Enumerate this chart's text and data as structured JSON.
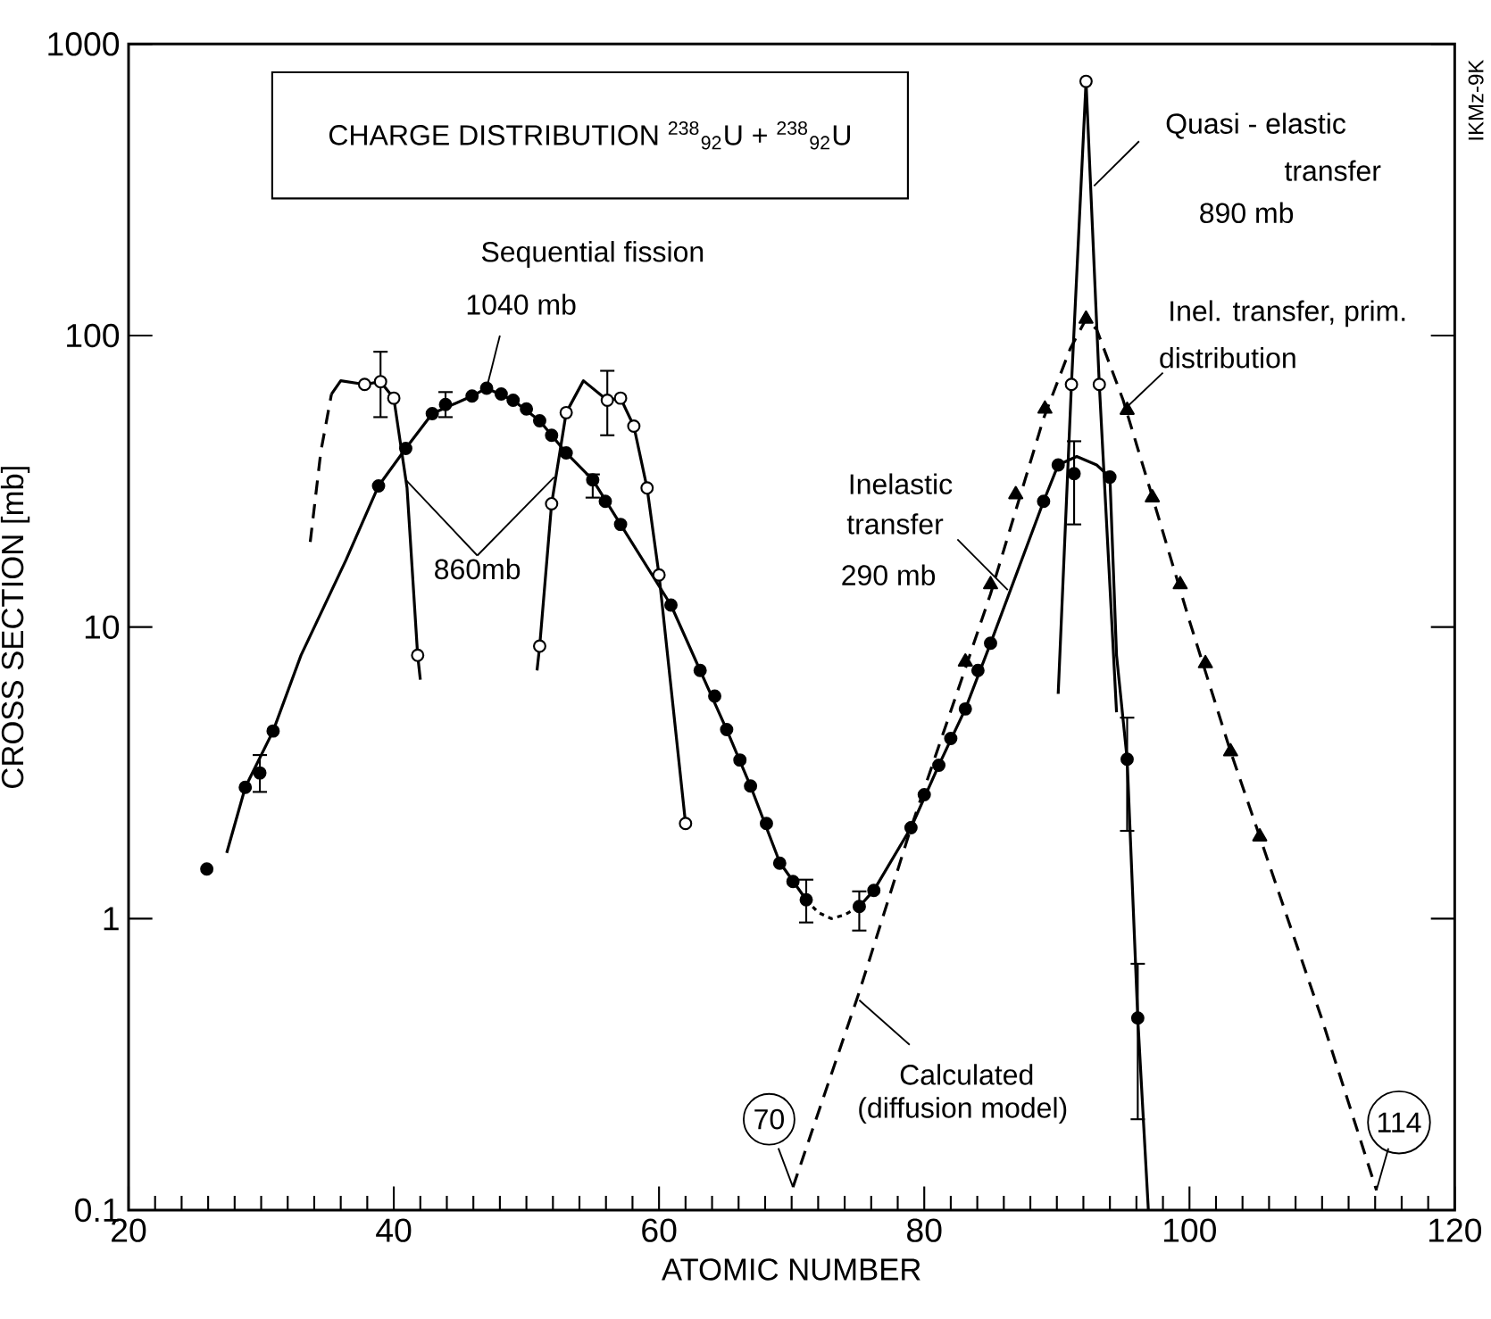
{
  "chart_data": {
    "type": "line",
    "title": "CHARGE DISTRIBUTION $^{238}$$_{92}$U + $^{238}$$_{92}$U",
    "xlabel": "ATOMIC NUMBER",
    "ylabel": "CROSS SECTION [mb]",
    "xlim": [
      20,
      120
    ],
    "ylim": [
      0.1,
      1000
    ],
    "xticks": [
      20,
      40,
      60,
      80,
      100,
      120
    ],
    "yticks": [
      0.1,
      1,
      10,
      100,
      1000
    ],
    "log": "y",
    "annotations": [
      "Sequential fission",
      {
        "text": "1040 mb",
        "x": 47.0,
        "y": 66
      },
      {
        "text": "860mb",
        "x": 40.9,
        "y": 32
      },
      {
        "text": "Quasi - elastic",
        "x": 92.8,
        "y": 326
      },
      "transfer",
      "890 mb",
      "Inel. transfer, prim.",
      {
        "text": "distribution",
        "x": 95.3,
        "y": 57
      },
      "Inelastic",
      {
        "text": "transfer",
        "x": 86.3,
        "y": 13.4
      },
      "290 mb",
      {
        "text": "Calculated",
        "x": 75.1,
        "y": 0.525
      },
      "(diffusion model)",
      {
        "text": "70",
        "x": 70.1,
        "y": 0.12
      },
      {
        "text": "114",
        "x": 114.1,
        "y": 0.117
      },
      "IKMz-9K"
    ],
    "series": [
      {
        "color": "#000000",
        "marker": "none",
        "line_style": "solid",
        "x": [
          27.4,
          28.8,
          30.9,
          33.0,
          36.4,
          38.85,
          40.9,
          42.9,
          45.9,
          47.0,
          49.0,
          51.0,
          53.0,
          55.0,
          57.1,
          60.9,
          63.1,
          65.1,
          66.9,
          69.1,
          71.1
        ],
        "values": [
          1.68,
          2.82,
          4.4,
          8,
          17,
          30.5,
          41,
          54,
          62,
          66,
          60,
          51,
          39.6,
          32,
          22.5,
          11.9,
          7.1,
          4.45,
          2.85,
          1.56,
          1.16
        ]
      },
      {
        "color": "#000000",
        "marker": "none",
        "line_style": "dotted",
        "x": [
          71.1,
          72.0,
          73.0,
          74.0,
          75.1
        ],
        "values": [
          1.16,
          1.05,
          1.0,
          1.03,
          1.1
        ]
      },
      {
        "color": "#000000",
        "marker": "none",
        "line_style": "solid",
        "x": [
          75.1,
          76.2,
          79.0,
          81.1,
          83.1,
          85.0,
          89.0,
          90.1,
          91.5,
          93.0,
          94.0,
          94.5,
          95.3,
          96.1,
          96.9
        ],
        "values": [
          1.1,
          1.25,
          2.05,
          3.36,
          5.24,
          8.8,
          27,
          36,
          38.5,
          36,
          32.7,
          8,
          3.52,
          0.456,
          0.1
        ]
      },
      {
        "color": "#000000",
        "marker": "none",
        "line_style": "dashed",
        "x": [
          33.7,
          34.5,
          35.3
        ],
        "values": [
          19.6,
          40,
          63
        ]
      },
      {
        "color": "#000000",
        "marker": "none",
        "line_style": "solid",
        "x": [
          35.3,
          36.0,
          37.8,
          39.0,
          40.0,
          41.0,
          41.8,
          42.0
        ],
        "values": [
          63,
          70,
          68,
          69.5,
          61,
          30,
          8,
          6.6
        ]
      },
      {
        "color": "#000000",
        "marker": "none",
        "line_style": "solid",
        "x": [
          50.8,
          51.0,
          51.9,
          53.0,
          54.3,
          56.1,
          57.1,
          58.1,
          59.1,
          60.0,
          62.0
        ],
        "values": [
          7.1,
          8.6,
          26.5,
          54.4,
          70,
          60,
          61,
          48.9,
          30,
          15.1,
          2.12
        ]
      },
      {
        "color": "#000000",
        "marker": "none",
        "line_style": "solid",
        "x": [
          90.1,
          91.1,
          92.2,
          93.2,
          94.5
        ],
        "values": [
          5.9,
          68,
          745,
          68,
          5.1
        ]
      },
      {
        "color": "#000000",
        "marker": "none",
        "line_style": "dashed",
        "x": [
          70.1,
          75.1,
          79.0,
          83.0,
          85.0,
          87.0,
          89.0,
          91.0,
          92.2,
          93.0,
          95.0,
          97.2,
          100.0,
          103.1,
          105.3,
          110.0,
          114.1
        ],
        "values": [
          0.12,
          0.56,
          2.05,
          7,
          13,
          26,
          52,
          90,
          114,
          105,
          60,
          28,
          10.5,
          3.74,
          1.91,
          0.45,
          0.117
        ]
      },
      {
        "type": "scatter",
        "color": "#000000",
        "marker": "circle",
        "x": [
          25.9,
          28.8,
          29.9,
          30.9,
          38.85,
          40.9,
          42.9,
          43.9,
          45.9,
          47.0,
          48.1,
          49.0,
          50.0,
          51.0,
          51.9,
          53.0,
          55.0,
          55.95,
          57.1,
          60.9,
          63.1,
          64.2,
          65.1,
          66.1,
          66.9,
          68.1,
          69.1,
          70.1,
          71.1,
          75.1,
          76.2,
          79.0,
          80.0,
          81.1,
          82.0,
          83.1
        ],
        "values": [
          1.48,
          2.82,
          3.16,
          4.4,
          30.5,
          41,
          54,
          58,
          62,
          66,
          63,
          60,
          56,
          51,
          45.5,
          39.6,
          32,
          27,
          22.5,
          11.9,
          7.1,
          5.8,
          4.45,
          3.5,
          2.85,
          2.12,
          1.55,
          1.34,
          1.16,
          1.1,
          1.25,
          2.05,
          2.66,
          3.36,
          4.15,
          5.24
        ],
        "errors": [
          null,
          null,
          [
            2.72,
            3.64
          ],
          null,
          null,
          null,
          null,
          [
            52.5,
            64
          ],
          null,
          null,
          null,
          null,
          null,
          null,
          null,
          null,
          [
            27.8,
            33.4
          ],
          null,
          null,
          null,
          null,
          null,
          null,
          null,
          null,
          null,
          null,
          null,
          [
            0.97,
            1.36
          ],
          [
            0.91,
            1.24
          ],
          null,
          null,
          null,
          null,
          null,
          null
        ]
      },
      {
        "type": "scatter",
        "color": "#ffffff",
        "marker": "circle",
        "x": [
          37.8,
          39.0,
          40.0,
          41.8,
          51.0,
          51.9,
          53.0,
          56.1,
          57.1,
          58.1,
          59.1,
          60.0,
          62.0
        ],
        "values": [
          68,
          69.5,
          61,
          8.0,
          8.6,
          26.5,
          54.4,
          60,
          61,
          48.9,
          30,
          15.1,
          2.12
        ],
        "errors": [
          null,
          [
            52.5,
            88
          ],
          null,
          null,
          null,
          null,
          null,
          [
            45.5,
            75.7
          ],
          null,
          null,
          null,
          null,
          null
        ]
      },
      {
        "type": "scatter",
        "color": "#ffffff",
        "marker": "circle",
        "x": [
          91.1,
          92.2,
          93.2
        ],
        "values": [
          68,
          745,
          68
        ]
      },
      {
        "type": "scatter",
        "color": "#000000",
        "marker": "circle",
        "x": [
          84.05,
          85.0,
          89.0,
          90.1,
          91.3,
          94.0,
          95.3,
          96.1
        ],
        "values": [
          7.1,
          8.8,
          27,
          36,
          33.6,
          32.7,
          3.52,
          0.456
        ],
        "errors": [
          null,
          null,
          null,
          null,
          [
            22.5,
            43.4
          ],
          null,
          [
            2.0,
            4.89
          ],
          [
            0.205,
            0.7
          ]
        ]
      },
      {
        "type": "scatter",
        "color": "#000000",
        "marker": "triangle",
        "x": [
          83.1,
          85.0,
          86.9,
          89.1,
          92.2,
          95.3,
          97.2,
          99.3,
          101.2,
          103.1,
          105.3
        ],
        "values": [
          7.6,
          14,
          28.5,
          56,
          114,
          55.5,
          27.8,
          14,
          7.5,
          3.74,
          1.91
        ]
      }
    ]
  }
}
